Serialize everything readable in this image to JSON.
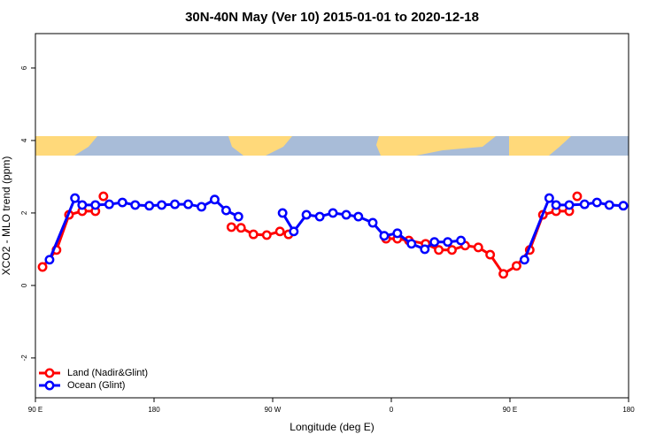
{
  "chart_data": {
    "type": "line",
    "title": "30N-40N May (Ver 10)   2015-01-01 to 2020-12-18",
    "x_label": "Longitude (deg E)",
    "y_label": "XCO2 - MLO trend (ppm)",
    "xlim": [
      90,
      540
    ],
    "xticks": [
      {
        "value": 90,
        "label": "90 E"
      },
      180,
      {
        "value": 270,
        "label": "90 W"
      },
      {
        "value": 360,
        "label": "0"
      },
      {
        "value": 450,
        "label": "90 E"
      },
      {
        "value": 540,
        "label": "180"
      }
    ],
    "ylim": [
      -3.1,
      6.95
    ],
    "yticks": [
      -2,
      0,
      2,
      4,
      6
    ],
    "legend": "bottom-left",
    "series": [
      {
        "name": "Land (Nadir&Glint)",
        "color": "#ff0000",
        "x": [
          95.4,
          106,
          115.5,
          125.5,
          135.5,
          null,
          141.6,
          null,
          238.7,
          246,
          255.4,
          265.5,
          275.5,
          282,
          null,
          356,
          364.6,
          373.3,
          386,
          396,
          406,
          416,
          426,
          435,
          445,
          455,
          465,
          475,
          485,
          495,
          null,
          501
        ],
        "values": [
          0.51,
          0.98,
          1.95,
          2.05,
          2.05,
          null,
          2.46,
          null,
          1.61,
          1.59,
          1.41,
          1.39,
          1.49,
          1.41,
          null,
          1.29,
          1.29,
          1.24,
          1.15,
          0.98,
          0.98,
          1.1,
          1.05,
          0.85,
          0.32,
          0.54,
          0.98,
          1.95,
          2.05,
          2.05,
          null,
          2.46
        ]
      },
      {
        "name": "Ocean (Glint)",
        "color": "#0000ff",
        "x": [
          100.7,
          120,
          125.5,
          135.5,
          146,
          156,
          165.7,
          176.4,
          185.8,
          195.8,
          205.9,
          216,
          226,
          234.7,
          244,
          null,
          277.5,
          286,
          295.6,
          305.7,
          315.7,
          325.8,
          335,
          345.9,
          354.6,
          364.6,
          375.3,
          385.4,
          392.7,
          402.8,
          412.8,
          null,
          461,
          479.8,
          485,
          495,
          506.6,
          516,
          525.4,
          536
        ],
        "values": [
          0.71,
          2.41,
          2.22,
          2.22,
          2.24,
          2.29,
          2.22,
          2.2,
          2.22,
          2.24,
          2.24,
          2.17,
          2.37,
          2.07,
          1.9,
          null,
          2.0,
          1.49,
          1.95,
          1.9,
          2.0,
          1.95,
          1.9,
          1.73,
          1.37,
          1.44,
          1.15,
          1.0,
          1.2,
          1.2,
          1.24,
          null,
          0.71,
          2.41,
          2.22,
          2.22,
          2.24,
          2.29,
          2.22,
          2.2
        ]
      }
    ]
  }
}
